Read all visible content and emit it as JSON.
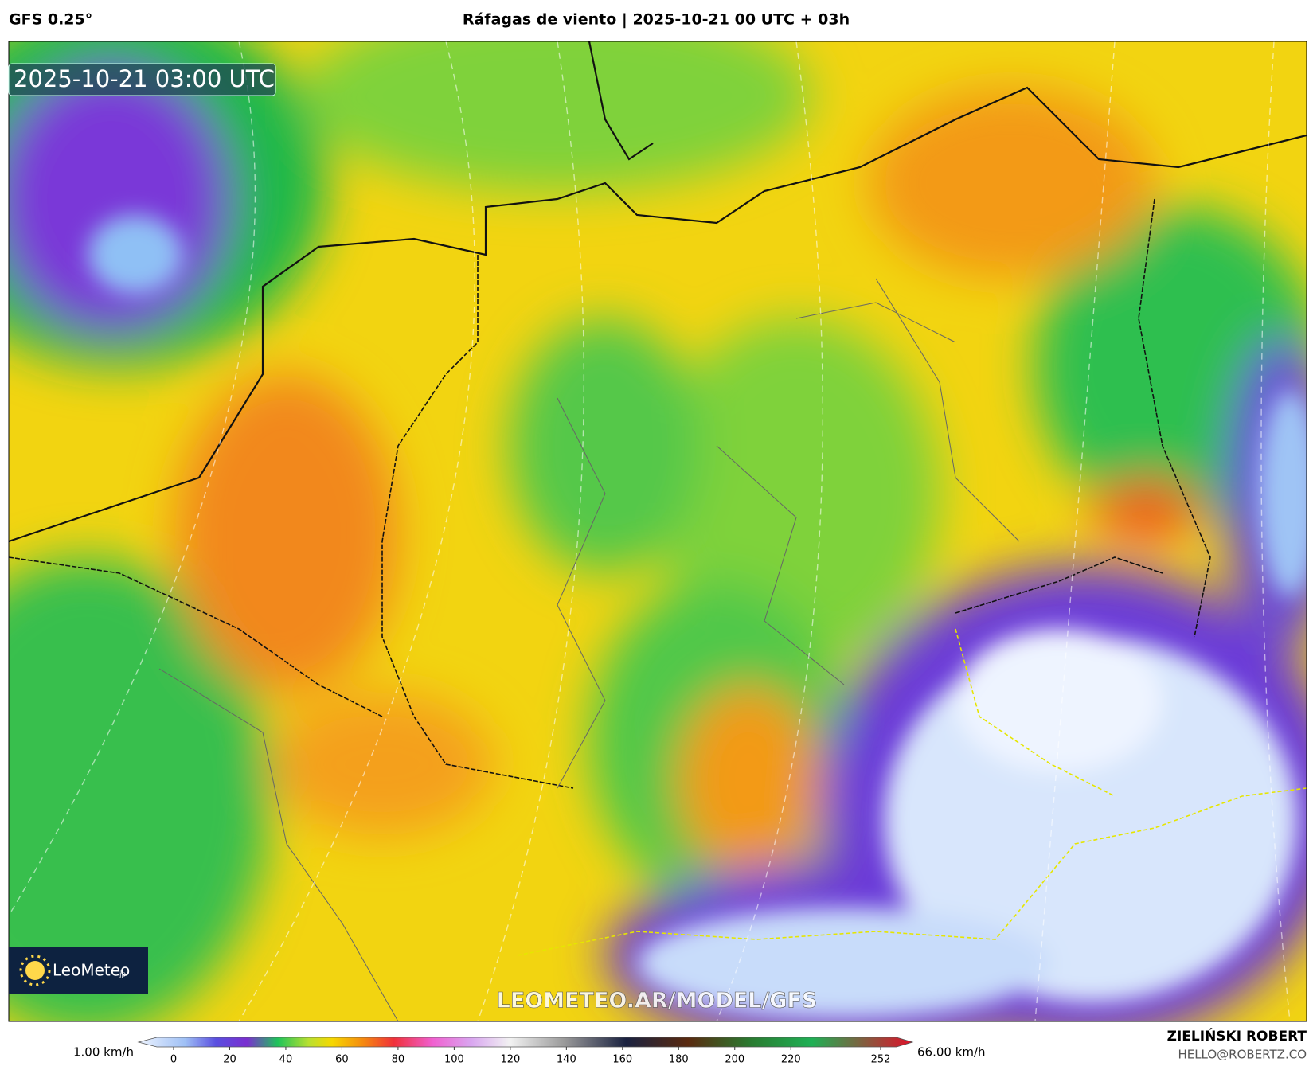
{
  "header": {
    "model": "GFS 0.25°",
    "title": "Ráfagas de viento | 2025-10-21 00 UTC + 03h"
  },
  "map": {
    "timestamp": "2025-10-21 03:00 UTC",
    "logo": "LeoMeteo",
    "logo_suffix": "jp",
    "watermark": "LEOMETEO.AR/MODEL/GFS"
  },
  "colorbar": {
    "min_label": "1.00 km/h",
    "max_label": "66.00 km/h",
    "ticks": [
      0,
      20,
      40,
      60,
      80,
      100,
      120,
      140,
      160,
      180,
      200,
      220,
      252
    ]
  },
  "credit": {
    "author": "ZIELIŃSKI ROBERT",
    "email": "HELLO@ROBERTZ.CO"
  }
}
